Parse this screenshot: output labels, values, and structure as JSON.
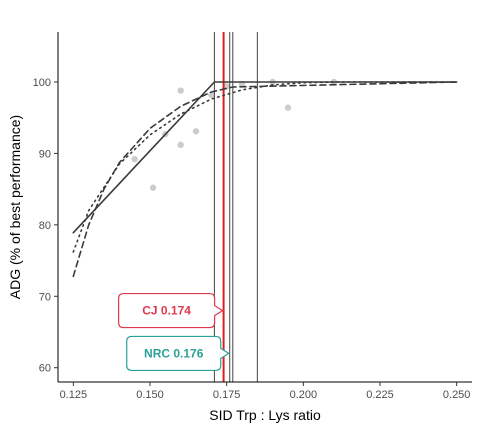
{
  "chart_data": {
    "type": "scatter",
    "xlabel": "SID Trp : Lys ratio",
    "ylabel": "ADG (% of best performance)",
    "xlim": [
      0.12,
      0.255
    ],
    "ylim": [
      58,
      107
    ],
    "x_ticks": [
      0.125,
      0.15,
      0.175,
      0.2,
      0.225,
      0.25
    ],
    "x_tick_labels": [
      "0.125",
      "0.150",
      "0.175",
      "0.200",
      "0.225",
      "0.250"
    ],
    "y_ticks": [
      60,
      70,
      80,
      90,
      100
    ],
    "y_tick_labels": [
      "60",
      "70",
      "80",
      "90",
      "100"
    ],
    "grid": false,
    "points": [
      {
        "x": 0.145,
        "y": 89.2
      },
      {
        "x": 0.151,
        "y": 85.2
      },
      {
        "x": 0.155,
        "y": 92.7
      },
      {
        "x": 0.16,
        "y": 98.8
      },
      {
        "x": 0.16,
        "y": 91.2
      },
      {
        "x": 0.165,
        "y": 93.1
      },
      {
        "x": 0.17,
        "y": 98.2
      },
      {
        "x": 0.175,
        "y": 99.4
      },
      {
        "x": 0.18,
        "y": 99.7
      },
      {
        "x": 0.19,
        "y": 100.0
      },
      {
        "x": 0.195,
        "y": 96.4
      },
      {
        "x": 0.21,
        "y": 100.0
      }
    ],
    "series": [
      {
        "style": "solid",
        "x": [
          0.125,
          0.171,
          0.25
        ],
        "y": [
          78.9,
          100.0,
          100.0
        ]
      },
      {
        "style": "dotted",
        "x": [
          0.125,
          0.13,
          0.14,
          0.15,
          0.16,
          0.17,
          0.18,
          0.19,
          0.2,
          0.21,
          0.22,
          0.25
        ],
        "y": [
          76.2,
          82.0,
          88.5,
          92.6,
          95.5,
          97.6,
          98.9,
          99.6,
          99.9,
          100.0,
          100.0,
          100.0
        ]
      },
      {
        "style": "dashed",
        "x": [
          0.125,
          0.13,
          0.135,
          0.14,
          0.15,
          0.16,
          0.17,
          0.177,
          0.25
        ],
        "y": [
          72.8,
          80.0,
          85.0,
          88.7,
          93.5,
          96.6,
          98.6,
          99.3,
          100.0
        ]
      }
    ],
    "vlines": [
      {
        "x": 0.171,
        "color": "#444444"
      },
      {
        "x": 0.176,
        "color": "#444444"
      },
      {
        "x": 0.177,
        "color": "#444444"
      },
      {
        "x": 0.185,
        "color": "#444444"
      },
      {
        "x": 0.174,
        "color": "#e31a1c"
      }
    ],
    "annotations": [
      {
        "text": "CJ 0.174",
        "x": 0.174,
        "y": 68.0,
        "color": "#e0394f"
      },
      {
        "text": "NRC 0.176",
        "x": 0.176,
        "y": 62.0,
        "color": "#2aa198"
      }
    ]
  }
}
